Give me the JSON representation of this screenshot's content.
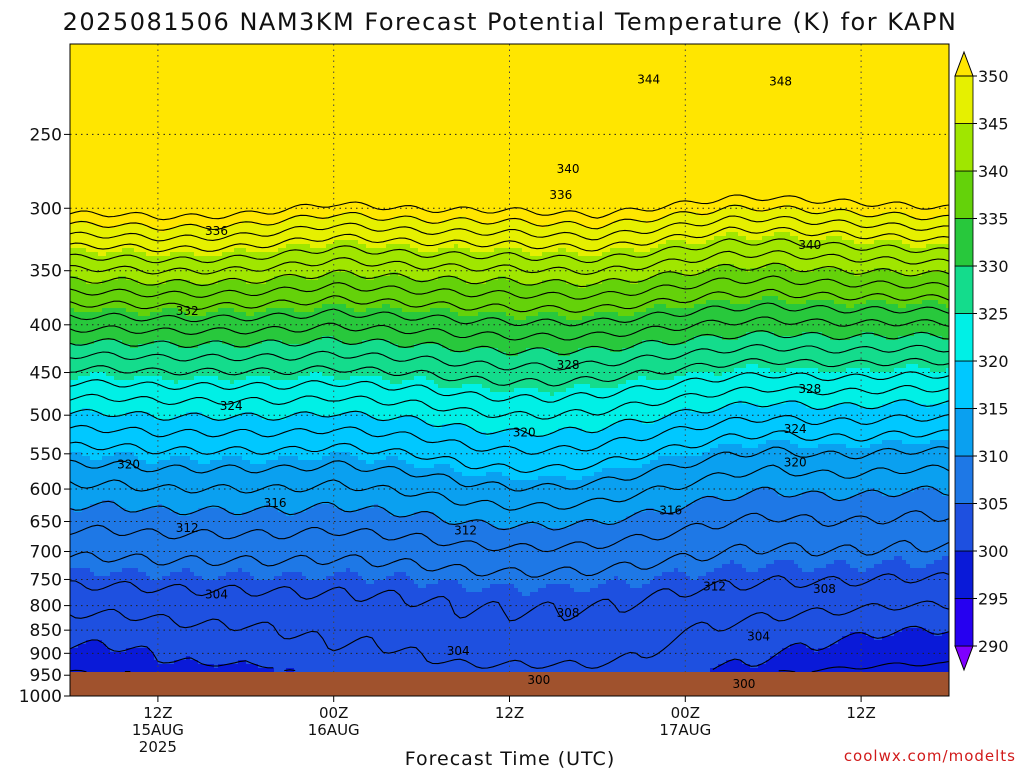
{
  "chart_data": {
    "type": "heatmap",
    "title": "2025081506 NAM3KM Forecast Potential Temperature (K) for KAPN",
    "xlabel": "Forecast Time (UTC)",
    "ylabel": "",
    "credit": "coolwx.com/modelts",
    "y_axis": {
      "scale": "log",
      "reversed": true,
      "range": [
        1000,
        200
      ],
      "ticks": [
        250,
        300,
        350,
        400,
        450,
        500,
        550,
        600,
        650,
        700,
        750,
        800,
        850,
        900,
        950,
        1000
      ]
    },
    "x_axis": {
      "range_hours": [
        0,
        60
      ],
      "ticks": [
        {
          "hour": 6,
          "lines": [
            "12Z",
            "15AUG",
            "2025"
          ]
        },
        {
          "hour": 18,
          "lines": [
            "00Z",
            "16AUG"
          ]
        },
        {
          "hour": 30,
          "lines": [
            "12Z"
          ]
        },
        {
          "hour": 42,
          "lines": [
            "00Z",
            "17AUG"
          ]
        },
        {
          "hour": 54,
          "lines": [
            "12Z"
          ]
        }
      ]
    },
    "colorbar": {
      "levels": [
        290,
        295,
        300,
        305,
        310,
        315,
        320,
        325,
        330,
        335,
        340,
        345,
        350
      ],
      "colors": [
        "#7f00ff",
        "#2600f0",
        "#0a1ad8",
        "#1e50e0",
        "#1e78e6",
        "#0aa0f0",
        "#00c8ff",
        "#00f0e6",
        "#14dc8c",
        "#28c83c",
        "#64d20a",
        "#a0e600",
        "#e6f000",
        "#ffe600"
      ]
    },
    "contour_labels": [
      {
        "value": "344",
        "hour": 39.5,
        "p": 218
      },
      {
        "value": "348",
        "hour": 48.5,
        "p": 219
      },
      {
        "value": "340",
        "hour": 34.0,
        "p": 272
      },
      {
        "value": "336",
        "hour": 33.5,
        "p": 290
      },
      {
        "value": "336",
        "hour": 10.0,
        "p": 317
      },
      {
        "value": "340",
        "hour": 50.5,
        "p": 328
      },
      {
        "value": "332",
        "hour": 8.0,
        "p": 386
      },
      {
        "value": "328",
        "hour": 34.0,
        "p": 441
      },
      {
        "value": "328",
        "hour": 50.5,
        "p": 468
      },
      {
        "value": "324",
        "hour": 11.0,
        "p": 488
      },
      {
        "value": "324",
        "hour": 49.5,
        "p": 517
      },
      {
        "value": "320",
        "hour": 31.0,
        "p": 521
      },
      {
        "value": "320",
        "hour": 4.0,
        "p": 564
      },
      {
        "value": "320",
        "hour": 49.5,
        "p": 561
      },
      {
        "value": "316",
        "hour": 14.0,
        "p": 620
      },
      {
        "value": "316",
        "hour": 41.0,
        "p": 632
      },
      {
        "value": "312",
        "hour": 8.0,
        "p": 660
      },
      {
        "value": "312",
        "hour": 27.0,
        "p": 664
      },
      {
        "value": "312",
        "hour": 44.0,
        "p": 762
      },
      {
        "value": "304",
        "hour": 10.0,
        "p": 777
      },
      {
        "value": "308",
        "hour": 34.0,
        "p": 814
      },
      {
        "value": "308",
        "hour": 51.5,
        "p": 767
      },
      {
        "value": "304",
        "hour": 26.5,
        "p": 894
      },
      {
        "value": "304",
        "hour": 47.0,
        "p": 862
      },
      {
        "value": "300",
        "hour": 32.0,
        "p": 960
      },
      {
        "value": "300",
        "hour": 46.0,
        "p": 970
      }
    ]
  }
}
